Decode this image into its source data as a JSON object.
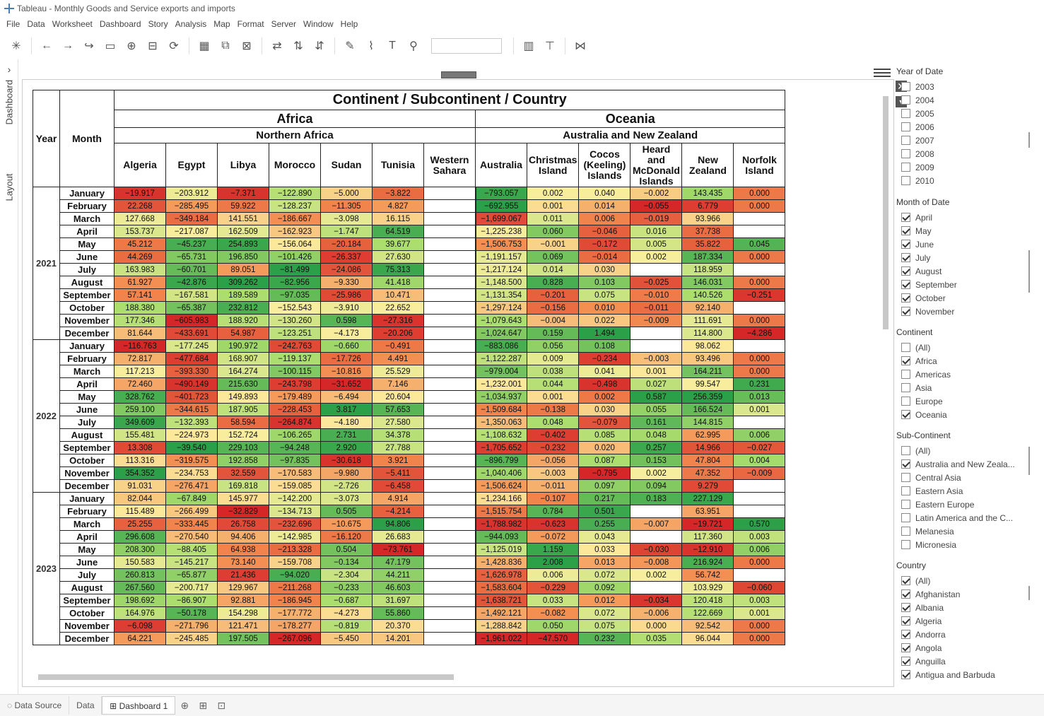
{
  "window": {
    "title": "Tableau - Monthly Goods and Service exports and imports"
  },
  "menu": [
    "File",
    "Data",
    "Worksheet",
    "Dashboard",
    "Story",
    "Analysis",
    "Map",
    "Format",
    "Server",
    "Window",
    "Help"
  ],
  "sidetabs": {
    "dashboard": "Dashboard",
    "layout": "Layout"
  },
  "table": {
    "title": "Continent / Subcontinent / Country",
    "col_year": "Year",
    "col_month": "Month",
    "continents": [
      {
        "name": "Africa",
        "sub": "Northern Africa",
        "countries": [
          "Algeria",
          "Egypt",
          "Libya",
          "Morocco",
          "Sudan",
          "Tunisia",
          "Western Sahara"
        ]
      },
      {
        "name": "Oceania",
        "sub": "Australia and New Zealand",
        "countries": [
          "Australia",
          "Christmas Island",
          "Cocos (Keeling) Islands",
          "Heard and McDonald Islands",
          "New Zealand",
          "Norfolk Island"
        ]
      }
    ],
    "months": [
      "January",
      "February",
      "March",
      "April",
      "May",
      "June",
      "July",
      "August",
      "September",
      "October",
      "November",
      "December"
    ],
    "years": [
      {
        "year": "2021",
        "rows": [
          [
            "−19.917",
            "−203.912",
            "−7.371",
            "−122.890",
            "−5.000",
            "−3.822",
            "",
            "−793.057",
            "0.002",
            "0.040",
            "−0.002",
            "143.435",
            "0.000"
          ],
          [
            "22.268",
            "−285.495",
            "59.922",
            "−128.237",
            "−11.305",
            "4.827",
            "",
            "−692.955",
            "0.001",
            "0.014",
            "−0.055",
            "6.779",
            "0.000"
          ],
          [
            "127.668",
            "−349.184",
            "141.551",
            "−186.667",
            "−3.098",
            "16.115",
            "",
            "−1,699.067",
            "0.011",
            "0.006",
            "−0.019",
            "93.966",
            ""
          ],
          [
            "153.737",
            "−217.087",
            "162.509",
            "−162.923",
            "−1.747",
            "64.519",
            "",
            "−1,225.238",
            "0.060",
            "−0.046",
            "0.016",
            "37.738",
            ""
          ],
          [
            "45.212",
            "−45.237",
            "254.893",
            "−156.064",
            "−20.184",
            "39.677",
            "",
            "−1,506.753",
            "−0.001",
            "−0.172",
            "0.005",
            "35.822",
            "0.045"
          ],
          [
            "44.269",
            "−65.731",
            "196.850",
            "−101.426",
            "−26.337",
            "27.630",
            "",
            "−1,191.157",
            "0.069",
            "−0.014",
            "0.002",
            "187.334",
            "0.000"
          ],
          [
            "163.983",
            "−60.701",
            "89.051",
            "−81.499",
            "−24.086",
            "75.313",
            "",
            "−1,217.124",
            "0.014",
            "0.030",
            "",
            "118.959",
            ""
          ],
          [
            "61.927",
            "−42.876",
            "309.262",
            "−82.956",
            "−9.330",
            "41.418",
            "",
            "−1,148.500",
            "0.828",
            "0.103",
            "−0.025",
            "146.031",
            "0.000"
          ],
          [
            "57.141",
            "−167.581",
            "189.589",
            "−97.035",
            "−25.986",
            "10.471",
            "",
            "−1,131.354",
            "−0.201",
            "0.075",
            "−0.010",
            "140.526",
            "−0.251"
          ],
          [
            "188.380",
            "−65.387",
            "232.812",
            "−152.543",
            "−3.910",
            "22.652",
            "",
            "−1,297.124",
            "−0.156",
            "0.010",
            "−0.011",
            "92.140",
            ""
          ],
          [
            "177.346",
            "−605.983",
            "188.920",
            "−130.260",
            "0.598",
            "−27.316",
            "",
            "−1,079.643",
            "−0.004",
            "0.022",
            "−0.009",
            "111.691",
            "0.000"
          ],
          [
            "81.644",
            "−433.691",
            "54.987",
            "−123.251",
            "−4.173",
            "−20.206",
            "",
            "−1,024.647",
            "0.159",
            "1.494",
            "",
            "114.800",
            "−4.286"
          ]
        ]
      },
      {
        "year": "2022",
        "rows": [
          [
            "−116.763",
            "−177.245",
            "190.972",
            "−242.763",
            "−0.660",
            "−0.491",
            "",
            "−883.086",
            "0.056",
            "0.108",
            "",
            "98.062",
            ""
          ],
          [
            "72.817",
            "−477.684",
            "168.907",
            "−119.137",
            "−17.726",
            "4.491",
            "",
            "−1,122.287",
            "0.009",
            "−0.234",
            "−0.003",
            "93.496",
            "0.000"
          ],
          [
            "117.213",
            "−393.330",
            "164.274",
            "−100.115",
            "−10.816",
            "25.529",
            "",
            "−979.004",
            "0.038",
            "0.041",
            "0.001",
            "164.211",
            "0.000"
          ],
          [
            "72.460",
            "−490.149",
            "215.630",
            "−243.798",
            "−31.652",
            "7.146",
            "",
            "−1,232.001",
            "0.044",
            "−0.498",
            "0.027",
            "99.547",
            "0.231"
          ],
          [
            "328.762",
            "−401.723",
            "149.893",
            "−179.489",
            "−6.494",
            "20.604",
            "",
            "−1,034.937",
            "0.001",
            "0.002",
            "0.587",
            "256.359",
            "0.013"
          ],
          [
            "259.100",
            "−344.615",
            "187.905",
            "−228.453",
            "3.817",
            "57.653",
            "",
            "−1,509.684",
            "−0.138",
            "0.030",
            "0.055",
            "166.524",
            "0.001"
          ],
          [
            "349.609",
            "−132.393",
            "58.594",
            "−264.874",
            "−4.180",
            "27.580",
            "",
            "−1,350.063",
            "0.048",
            "−0.079",
            "0.161",
            "144.815",
            ""
          ],
          [
            "155.481",
            "−224.973",
            "152.724",
            "−106.265",
            "2.731",
            "34.378",
            "",
            "−1,108.632",
            "−0.402",
            "0.085",
            "0.048",
            "62.995",
            "0.006"
          ],
          [
            "13.308",
            "−39.540",
            "229.103",
            "−94.248",
            "2.920",
            "27.788",
            "",
            "−1,705.652",
            "−0.232",
            "0.020",
            "0.257",
            "14.966",
            "−0.027"
          ],
          [
            "113.316",
            "−319.575",
            "192.858",
            "−97.835",
            "−30.618",
            "3.921",
            "",
            "−896.799",
            "−0.056",
            "0.087",
            "0.153",
            "47.804",
            "0.004"
          ],
          [
            "354.352",
            "−234.753",
            "32.559",
            "−170.583",
            "−9.980",
            "−5.411",
            "",
            "−1,040.406",
            "−0.003",
            "−0.795",
            "0.002",
            "47.352",
            "−0.009"
          ],
          [
            "91.031",
            "−276.471",
            "169.818",
            "−159.085",
            "−2.726",
            "−6.458",
            "",
            "−1,506.624",
            "−0.011",
            "0.097",
            "0.094",
            "9.279",
            ""
          ]
        ]
      },
      {
        "year": "2023",
        "rows": [
          [
            "82.044",
            "−67.849",
            "145.977",
            "−142.200",
            "−3.073",
            "4.914",
            "",
            "−1,234.166",
            "−0.107",
            "0.217",
            "0.183",
            "227.129",
            ""
          ],
          [
            "115.489",
            "−266.499",
            "−32.829",
            "−134.713",
            "0.505",
            "−4.214",
            "",
            "−1,515.754",
            "0.784",
            "0.501",
            "",
            "63.951",
            ""
          ],
          [
            "25.255",
            "−333.445",
            "26.758",
            "−232.696",
            "−10.675",
            "94.806",
            "",
            "−1,788.982",
            "−0.623",
            "0.255",
            "−0.007",
            "−19.721",
            "0.570"
          ],
          [
            "296.608",
            "−270.540",
            "94.406",
            "−142.985",
            "−16.120",
            "26.683",
            "",
            "−944.093",
            "−0.072",
            "0.043",
            "",
            "117.360",
            "0.003"
          ],
          [
            "208.300",
            "−88.405",
            "64.938",
            "−213.328",
            "0.504",
            "−73.761",
            "",
            "−1,125.019",
            "1.159",
            "0.033",
            "−0.030",
            "−12.910",
            "0.006"
          ],
          [
            "150.583",
            "−145.217",
            "73.140",
            "−159.708",
            "−0.134",
            "47.179",
            "",
            "−1,428.836",
            "2.008",
            "0.013",
            "−0.008",
            "216.924",
            "0.000"
          ],
          [
            "260.813",
            "−65.877",
            "21.436",
            "−94.020",
            "−2.304",
            "44.211",
            "",
            "−1,626.978",
            "0.006",
            "0.072",
            "0.002",
            "56.742",
            ""
          ],
          [
            "267.560",
            "−200.717",
            "129.967",
            "−211.268",
            "−0.233",
            "46.603",
            "",
            "−1,583.604",
            "−0.229",
            "0.092",
            "",
            "103.929",
            "−0.060"
          ],
          [
            "198.692",
            "−86.907",
            "92.881",
            "−186.945",
            "−0.687",
            "31.697",
            "",
            "−1,638.721",
            "0.033",
            "0.012",
            "−0.034",
            "120.418",
            "0.003"
          ],
          [
            "164.976",
            "−50.178",
            "154.298",
            "−177.772",
            "−4.273",
            "55.860",
            "",
            "−1,492.121",
            "−0.082",
            "0.072",
            "−0.006",
            "122.669",
            "0.001"
          ],
          [
            "−6.098",
            "−271.796",
            "121.471",
            "−178.277",
            "−0.819",
            "20.370",
            "",
            "−1,288.842",
            "0.050",
            "0.075",
            "0.000",
            "92.542",
            "0.000"
          ],
          [
            "64.221",
            "−245.485",
            "197.505",
            "−267.096",
            "−5.450",
            "14.201",
            "",
            "−1,961.022",
            "−47.570",
            "0.232",
            "0.035",
            "96.044",
            "0.000"
          ]
        ]
      }
    ]
  },
  "filters": {
    "year": {
      "title": "Year of Date",
      "items": [
        [
          "2003",
          false
        ],
        [
          "2004",
          false
        ],
        [
          "2005",
          false
        ],
        [
          "2006",
          false
        ],
        [
          "2007",
          false
        ],
        [
          "2008",
          false
        ],
        [
          "2009",
          false
        ],
        [
          "2010",
          false
        ]
      ]
    },
    "month": {
      "title": "Month of Date",
      "items": [
        [
          "April",
          true
        ],
        [
          "May",
          true
        ],
        [
          "June",
          true
        ],
        [
          "July",
          true
        ],
        [
          "August",
          true
        ],
        [
          "September",
          true
        ],
        [
          "October",
          true
        ],
        [
          "November",
          true
        ]
      ]
    },
    "continent": {
      "title": "Continent",
      "items": [
        [
          "(All)",
          false
        ],
        [
          "Africa",
          true
        ],
        [
          "Americas",
          false
        ],
        [
          "Asia",
          false
        ],
        [
          "Europe",
          false
        ],
        [
          "Oceania",
          true
        ]
      ]
    },
    "subcontinent": {
      "title": "Sub-Continent",
      "items": [
        [
          "(All)",
          false
        ],
        [
          "Australia and New Zeala...",
          true
        ],
        [
          "Central Asia",
          false
        ],
        [
          "Eastern Asia",
          false
        ],
        [
          "Eastern Europe",
          false
        ],
        [
          "Latin America and the C...",
          false
        ],
        [
          "Melanesia",
          false
        ],
        [
          "Micronesia",
          false
        ]
      ]
    },
    "country": {
      "title": "Country",
      "items": [
        [
          "(All)",
          true
        ],
        [
          "Afghanistan",
          true
        ],
        [
          "Albania",
          true
        ],
        [
          "Algeria",
          true
        ],
        [
          "Andorra",
          true
        ],
        [
          "Angola",
          true
        ],
        [
          "Anguilla",
          true
        ],
        [
          "Antigua and Barbuda",
          true
        ]
      ]
    }
  },
  "bottom_tabs": {
    "datasource": "Data Source",
    "data": "Data",
    "dashboard": "Dashboard 1"
  }
}
